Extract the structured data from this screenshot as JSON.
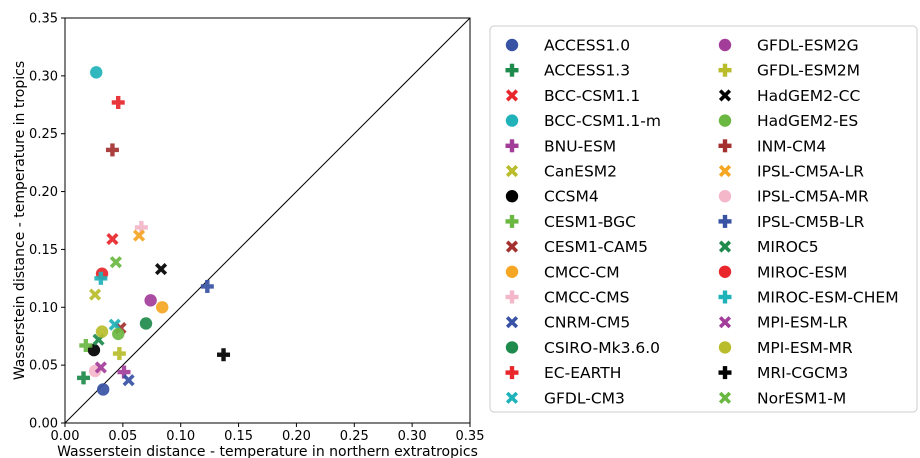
{
  "chart_data": {
    "type": "scatter",
    "xlabel": "Wasserstein distance - temperature in northern extratropics",
    "ylabel": "Wasserstein distance - temperature in tropics",
    "xlim": [
      0.0,
      0.35
    ],
    "ylim": [
      0.0,
      0.35
    ],
    "xticks": [
      "0.00",
      "0.05",
      "0.10",
      "0.15",
      "0.20",
      "0.25",
      "0.30",
      "0.35"
    ],
    "yticks": [
      "0.00",
      "0.05",
      "0.10",
      "0.15",
      "0.20",
      "0.25",
      "0.30",
      "0.35"
    ],
    "reference_line": "y = x",
    "legend_position": "right, outside plot, two columns",
    "series": [
      {
        "name": "ACCESS1.0",
        "marker": "circle",
        "color": "#3852a4",
        "x": 0.033,
        "y": 0.029
      },
      {
        "name": "ACCESS1.3",
        "marker": "plus",
        "color": "#1e8a4b",
        "x": 0.016,
        "y": 0.039
      },
      {
        "name": "BCC-CSM1.1",
        "marker": "x",
        "color": "#e8262b",
        "x": 0.041,
        "y": 0.159
      },
      {
        "name": "BCC-CSM1.1-m",
        "marker": "circle",
        "color": "#20b2b9",
        "x": 0.027,
        "y": 0.303
      },
      {
        "name": "BNU-ESM",
        "marker": "plus",
        "color": "#a33d9a",
        "x": 0.051,
        "y": 0.044
      },
      {
        "name": "CanESM2",
        "marker": "x",
        "color": "#b9bd2b",
        "x": 0.026,
        "y": 0.111
      },
      {
        "name": "CCSM4",
        "marker": "circle",
        "color": "#000000",
        "x": 0.025,
        "y": 0.063
      },
      {
        "name": "CESM1-BGC",
        "marker": "plus",
        "color": "#6ab842",
        "x": 0.018,
        "y": 0.067
      },
      {
        "name": "CESM1-CAM5",
        "marker": "x",
        "color": "#a3302f",
        "x": 0.048,
        "y": 0.082
      },
      {
        "name": "CMCC-CM",
        "marker": "circle",
        "color": "#f5a623",
        "x": 0.084,
        "y": 0.1
      },
      {
        "name": "CMCC-CMS",
        "marker": "plus",
        "color": "#f4b6c9",
        "x": 0.066,
        "y": 0.169
      },
      {
        "name": "CNRM-CM5",
        "marker": "x",
        "color": "#3852a4",
        "x": 0.055,
        "y": 0.037
      },
      {
        "name": "CSIRO-Mk3.6.0",
        "marker": "circle",
        "color": "#1e8a4b",
        "x": 0.07,
        "y": 0.086
      },
      {
        "name": "EC-EARTH",
        "marker": "plus",
        "color": "#e8262b",
        "x": 0.046,
        "y": 0.277
      },
      {
        "name": "GFDL-CM3",
        "marker": "x",
        "color": "#20b2b9",
        "x": 0.043,
        "y": 0.085
      },
      {
        "name": "GFDL-ESM2G",
        "marker": "circle",
        "color": "#a33d9a",
        "x": 0.074,
        "y": 0.106
      },
      {
        "name": "GFDL-ESM2M",
        "marker": "plus",
        "color": "#b9bd2b",
        "x": 0.047,
        "y": 0.06
      },
      {
        "name": "HadGEM2-CC",
        "marker": "x",
        "color": "#000000",
        "x": 0.083,
        "y": 0.133
      },
      {
        "name": "HadGEM2-ES",
        "marker": "circle",
        "color": "#6ab842",
        "x": 0.046,
        "y": 0.077
      },
      {
        "name": "INM-CM4",
        "marker": "plus",
        "color": "#a3302f",
        "x": 0.041,
        "y": 0.236
      },
      {
        "name": "IPSL-CM5A-LR",
        "marker": "x",
        "color": "#f5a623",
        "x": 0.064,
        "y": 0.162
      },
      {
        "name": "IPSL-CM5A-MR",
        "marker": "circle",
        "color": "#f4b6c9",
        "x": 0.026,
        "y": 0.045
      },
      {
        "name": "IPSL-CM5B-LR",
        "marker": "plus",
        "color": "#3852a4",
        "x": 0.123,
        "y": 0.118
      },
      {
        "name": "MIROC5",
        "marker": "x",
        "color": "#1e8a4b",
        "x": 0.029,
        "y": 0.072
      },
      {
        "name": "MIROC-ESM",
        "marker": "circle",
        "color": "#e8262b",
        "x": 0.032,
        "y": 0.129
      },
      {
        "name": "MIROC-ESM-CHEM",
        "marker": "plus",
        "color": "#20b2b9",
        "x": 0.031,
        "y": 0.125
      },
      {
        "name": "MPI-ESM-LR",
        "marker": "x",
        "color": "#a33d9a",
        "x": 0.031,
        "y": 0.048
      },
      {
        "name": "MPI-ESM-MR",
        "marker": "circle",
        "color": "#b9bd2b",
        "x": 0.032,
        "y": 0.079
      },
      {
        "name": "MRI-CGCM3",
        "marker": "plus",
        "color": "#000000",
        "x": 0.137,
        "y": 0.059
      },
      {
        "name": "NorESM1-M",
        "marker": "x",
        "color": "#6ab842",
        "x": 0.044,
        "y": 0.139
      }
    ]
  }
}
